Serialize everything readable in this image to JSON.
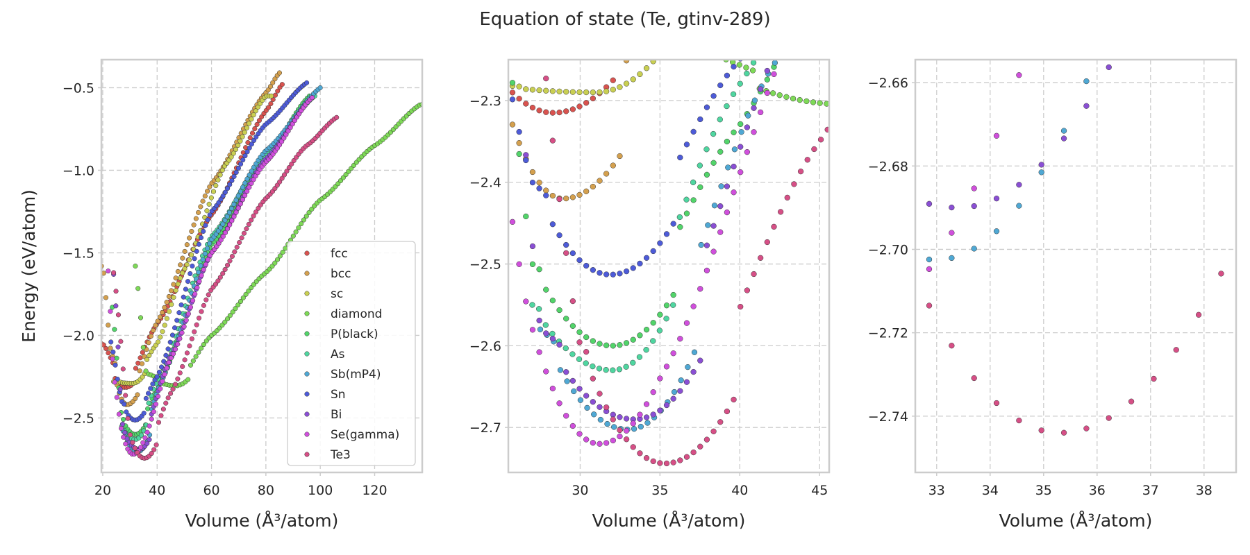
{
  "title": "Equation of state (Te, gtinv-289)",
  "colors": {
    "fcc": "#d9534f",
    "bcc": "#d4a04e",
    "sc": "#c9cf52",
    "diamond": "#7ed957",
    "P(black)": "#52d46a",
    "As": "#4fd6a0",
    "Sb(mP4)": "#4fa8d4",
    "Sn": "#4d5bd8",
    "Bi": "#8a4fd4",
    "Se(gamma)": "#d04fdc",
    "Te3": "#d64f86"
  },
  "chart_data": [
    {
      "type": "scatter",
      "xlabel": "Volume (Å³/atom)",
      "ylabel": "Energy (eV/atom)",
      "xlim": [
        19.5,
        137.5
      ],
      "ylim": [
        -2.83,
        -0.33
      ],
      "xticks": [
        20,
        40,
        60,
        80,
        100,
        120
      ],
      "yticks": [
        -2.5,
        -2.0,
        -1.5,
        -1.0,
        -0.5
      ],
      "grid": true,
      "legend": "lower-right",
      "legend_entries": [
        "fcc",
        "bcc",
        "sc",
        "diamond",
        "P(black)",
        "As",
        "Sb(mP4)",
        "Sn",
        "Bi",
        "Se(gamma)",
        "Te3"
      ],
      "series": [
        {
          "name": "fcc",
          "E0": -2.315,
          "V0": 28.3,
          "min_band": 3.8,
          "knots": [
            [
              20,
              -2.05
            ],
            [
              28.3,
              -2.315
            ],
            [
              40,
              -1.93
            ],
            [
              60,
              -1.27
            ],
            [
              80,
              -0.64
            ],
            [
              86,
              -0.48
            ]
          ],
          "x_range": [
            19.5,
            86
          ],
          "n": 80
        },
        {
          "name": "bcc",
          "E0": -2.42,
          "V0": 28.9,
          "min_band": 4.0,
          "knots": [
            [
              20,
              -1.58
            ],
            [
              23,
              -2.1
            ],
            [
              28.9,
              -2.42
            ],
            [
              40,
              -1.92
            ],
            [
              60,
              -1.08
            ],
            [
              80,
              -0.53
            ],
            [
              85,
              -0.41
            ]
          ],
          "x_range": [
            19.5,
            85
          ],
          "n": 80
        },
        {
          "name": "sc",
          "E0": -2.29,
          "V0": 31,
          "min_band": 4.5,
          "knots": [
            [
              22,
              -1.72
            ],
            [
              24,
              -2.28
            ],
            [
              31,
              -2.29
            ],
            [
              40,
              -2.05
            ],
            [
              50,
              -1.6
            ],
            [
              65,
              -0.97
            ],
            [
              80,
              -0.55
            ]
          ],
          "x_range": [
            24,
            82
          ],
          "n": 72
        },
        {
          "name": "diamond",
          "E0": -2.305,
          "V0": 46.7,
          "min_band": 5.5,
          "knots": [
            [
              32,
              -1.58
            ],
            [
              36,
              -2.23
            ],
            [
              46.7,
              -2.305
            ],
            [
              60,
              -2.0
            ],
            [
              80,
              -1.62
            ],
            [
              100,
              -1.18
            ],
            [
              120,
              -0.85
            ],
            [
              137,
              -0.6
            ]
          ],
          "x_range": [
            32,
            137.5
          ],
          "n": 110
        },
        {
          "name": "P(black)",
          "E0": -2.6,
          "V0": 32,
          "min_band": 4.2,
          "knots": [
            [
              23.5,
              -1.83
            ],
            [
              27,
              -2.5
            ],
            [
              32,
              -2.6
            ],
            [
              40,
              -2.33
            ],
            [
              60,
              -1.45
            ],
            [
              80,
              -0.92
            ],
            [
              96,
              -0.55
            ]
          ],
          "x_range": [
            23.5,
            96
          ],
          "n": 90
        },
        {
          "name": "As",
          "E0": -2.63,
          "V0": 32,
          "min_band": 4.2,
          "knots": [
            [
              27,
              -2.55
            ],
            [
              32,
              -2.63
            ],
            [
              40,
              -2.28
            ],
            [
              60,
              -1.4
            ],
            [
              80,
              -0.9
            ],
            [
              98,
              -0.55
            ]
          ],
          "x_range": [
            27,
            98
          ],
          "n": 80
        },
        {
          "name": "Sb(mP4)",
          "E0": -2.7025,
          "V0": 33,
          "min_band": 4.5,
          "knots": [
            [
              27.5,
              -2.58
            ],
            [
              33,
              -2.7025
            ],
            [
              42,
              -2.26
            ],
            [
              60,
              -1.42
            ],
            [
              80,
              -0.88
            ],
            [
              100,
              -0.5
            ]
          ],
          "x_range": [
            27.5,
            100
          ],
          "n": 90
        },
        {
          "name": "Sn",
          "E0": -2.513,
          "V0": 31.9,
          "min_band": 4.0,
          "knots": [
            [
              23,
              -2.04
            ],
            [
              27,
              -2.4
            ],
            [
              31.9,
              -2.513
            ],
            [
              40,
              -2.25
            ],
            [
              60,
              -1.25
            ],
            [
              80,
              -0.72
            ],
            [
              95,
              -0.47
            ]
          ],
          "x_range": [
            23,
            95
          ],
          "n": 90
        },
        {
          "name": "Bi",
          "E0": -2.69,
          "V0": 33.4,
          "min_band": 4.5,
          "knots": [
            [
              24,
              -1.63
            ],
            [
              27.5,
              -2.58
            ],
            [
              33.4,
              -2.69
            ],
            [
              45,
              -2.12
            ],
            [
              60,
              -1.5
            ],
            [
              80,
              -0.93
            ],
            [
              97,
              -0.56
            ]
          ],
          "x_range": [
            24,
            97
          ],
          "n": 90
        },
        {
          "name": "Se(gamma)",
          "E0": -2.72,
          "V0": 31.2,
          "min_band": 4.0,
          "knots": [
            [
              22,
              -1.61
            ],
            [
              24,
              -2.25
            ],
            [
              27,
              -2.58
            ],
            [
              31.2,
              -2.72
            ],
            [
              35,
              -2.64
            ],
            [
              45,
              -2.14
            ],
            [
              60,
              -1.5
            ],
            [
              80,
              -0.95
            ],
            [
              97,
              -0.56
            ]
          ],
          "x_range": [
            22,
            97
          ],
          "n": 95
        },
        {
          "name": "Te3",
          "E0": -2.744,
          "V0": 35.3,
          "min_band": 4.5,
          "knots": [
            [
              24,
              -1.62
            ],
            [
              30,
              -2.6
            ],
            [
              35.3,
              -2.744
            ],
            [
              45,
              -2.35
            ],
            [
              60,
              -1.72
            ],
            [
              80,
              -1.17
            ],
            [
              95,
              -0.85
            ],
            [
              106,
              -0.68
            ]
          ],
          "x_range": [
            24,
            106
          ],
          "n": 95
        }
      ]
    },
    {
      "type": "scatter",
      "xlabel": "Volume (Å³/atom)",
      "ylabel": "",
      "xlim": [
        25.5,
        45.6
      ],
      "ylim": [
        -2.755,
        -2.25
      ],
      "xticks": [
        30,
        35,
        40,
        45
      ],
      "yticks": [
        -2.7,
        -2.6,
        -2.5,
        -2.4,
        -2.3
      ],
      "grid": true,
      "legend": "none"
    },
    {
      "type": "scatter",
      "xlabel": "Volume (Å³/atom)",
      "ylabel": "",
      "xlim": [
        32.6,
        38.6
      ],
      "ylim": [
        -2.7535,
        -2.6545
      ],
      "xticks": [
        33,
        34,
        35,
        36,
        37,
        38
      ],
      "yticks": [
        -2.74,
        -2.72,
        -2.7,
        -2.68,
        -2.66
      ],
      "grid": true,
      "legend": "none"
    }
  ]
}
